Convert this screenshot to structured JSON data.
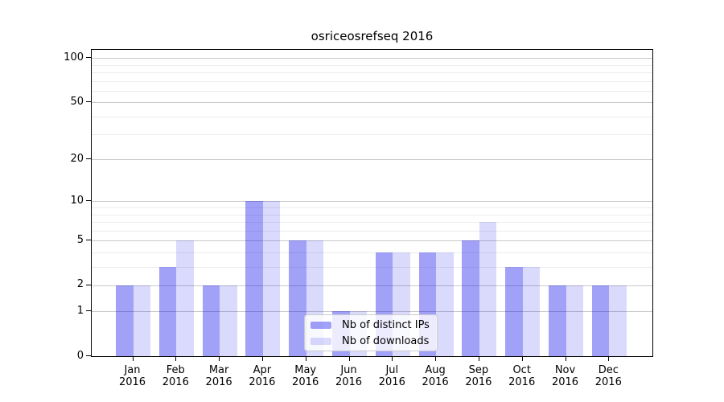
{
  "chart_data": {
    "type": "bar",
    "title": "osriceosrefseq 2016",
    "year_label": "2016",
    "categories": [
      "Jan",
      "Feb",
      "Mar",
      "Apr",
      "May",
      "Jun",
      "Jul",
      "Aug",
      "Sep",
      "Oct",
      "Nov",
      "Dec"
    ],
    "series": [
      {
        "name": "Nb of distinct IPs",
        "values": [
          2,
          3,
          2,
          10,
          5,
          1,
          4,
          4,
          5,
          3,
          2,
          2
        ],
        "color": "rgba(8,8,235,0.38)",
        "solid_color": "#a6a6f7"
      },
      {
        "name": "Nb of downloads",
        "values": [
          2,
          5,
          2,
          10,
          5,
          1,
          4,
          4,
          7,
          3,
          2,
          2
        ],
        "color": "rgba(8,8,235,0.15)",
        "solid_color": "#dcdcf8"
      }
    ],
    "xlabel": "",
    "ylabel": "",
    "y_axis": {
      "scale": "log1p",
      "range": [
        0,
        100
      ],
      "major_ticks": [
        0,
        1,
        2,
        5,
        10,
        20,
        50,
        100
      ],
      "minor_ticks": [
        3,
        4,
        6,
        7,
        8,
        9,
        30,
        40,
        60,
        70,
        80,
        90
      ]
    },
    "grid": {
      "enabled": true,
      "major_color": "#c9c9c9",
      "minor_color": "#ececec"
    },
    "legend": {
      "position": "lower center"
    }
  }
}
